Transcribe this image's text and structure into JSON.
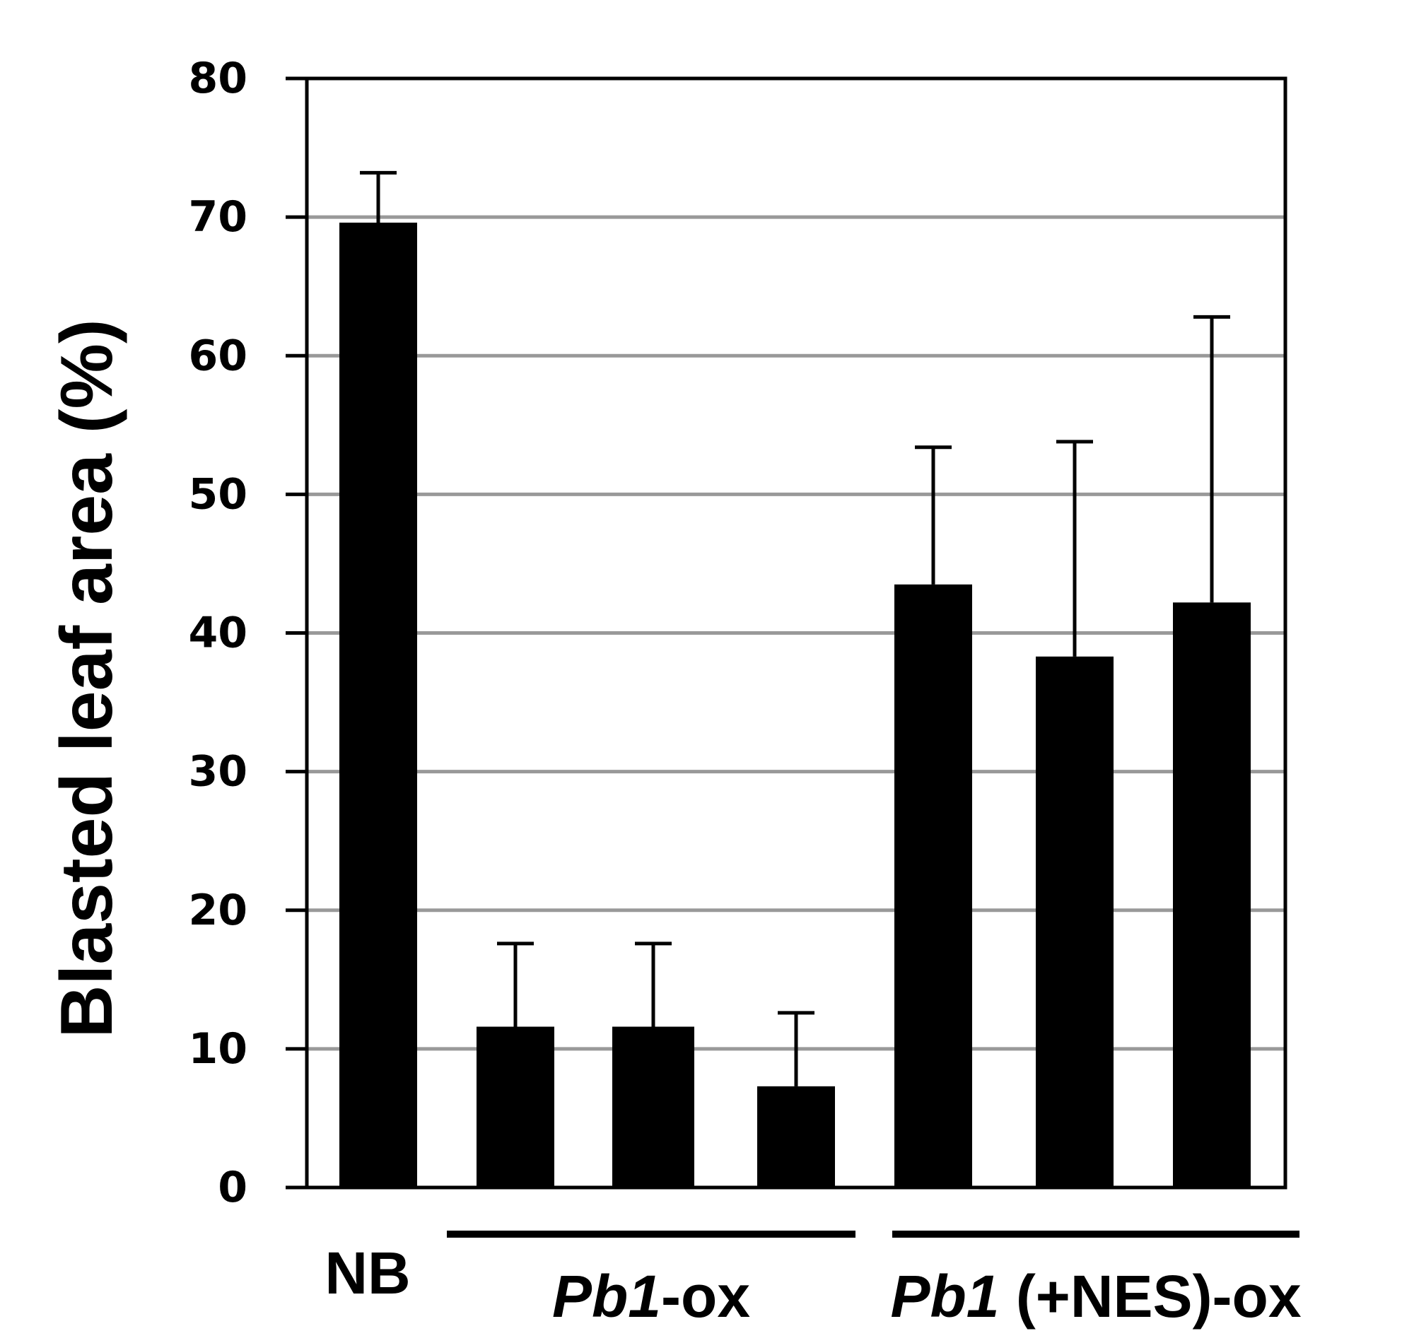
{
  "chart_data": {
    "type": "bar",
    "ylabel": "Blasted leaf area (%)",
    "ylim": [
      0,
      80
    ],
    "yticks": [
      "0",
      "10",
      "20",
      "30",
      "40",
      "50",
      "60",
      "70",
      "80"
    ],
    "grid": true,
    "bar_color": "#000000",
    "grid_color": "#999999",
    "values": [
      69.6,
      11.6,
      11.6,
      7.3,
      43.5,
      38.3,
      42.2
    ],
    "error_upper": [
      73.2,
      17.6,
      17.6,
      12.6,
      53.4,
      53.8,
      62.8
    ],
    "groups": [
      {
        "label": "NB",
        "bars": [
          0
        ]
      },
      {
        "label_italic": "Pb1",
        "label_rest": "-ox",
        "bars": [
          1,
          2,
          3
        ]
      },
      {
        "label_italic": "Pb1",
        "label_rest": " (+NES)-ox",
        "bars": [
          4,
          5,
          6
        ]
      }
    ]
  }
}
